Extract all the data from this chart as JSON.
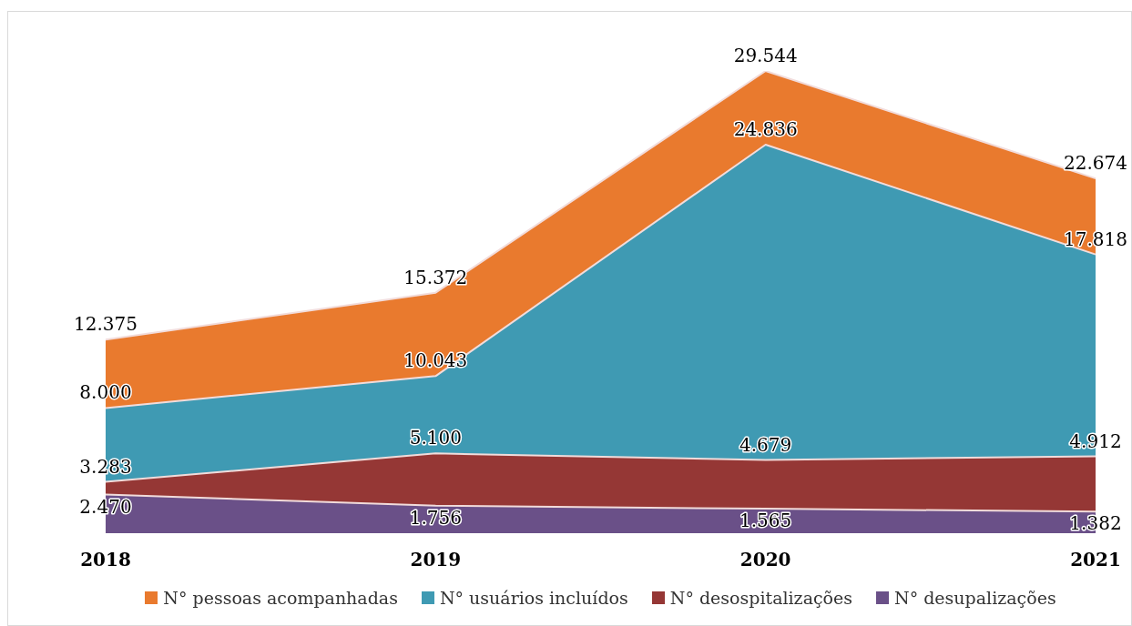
{
  "chart_data": {
    "type": "area",
    "categories": [
      "2018",
      "2019",
      "2020",
      "2021"
    ],
    "series": [
      {
        "name": "N° pessoas acompanhadas",
        "color": "#e97a2e",
        "values": [
          12375,
          15372,
          29544,
          22674
        ],
        "value_labels": [
          "12.375",
          "15.372",
          "29.544",
          "22.674"
        ]
      },
      {
        "name": "N° usuários incluídos",
        "color": "#3f9ab3",
        "values": [
          8000,
          10043,
          24836,
          17818
        ],
        "value_labels": [
          "8.000",
          "10.043",
          "24.836",
          "17.818"
        ]
      },
      {
        "name": "N° desospitalizações",
        "color": "#953735",
        "values": [
          3283,
          5100,
          4679,
          4912
        ],
        "value_labels": [
          "3.283",
          "5.100",
          "4.679",
          "4.912"
        ]
      },
      {
        "name": "N° desupalizações",
        "color": "#6a5088",
        "values": [
          2470,
          1756,
          1565,
          1382
        ],
        "value_labels": [
          "2.470",
          "1.756",
          "1.565",
          "1.382"
        ]
      }
    ],
    "legend": "bottom",
    "grid": false
  }
}
